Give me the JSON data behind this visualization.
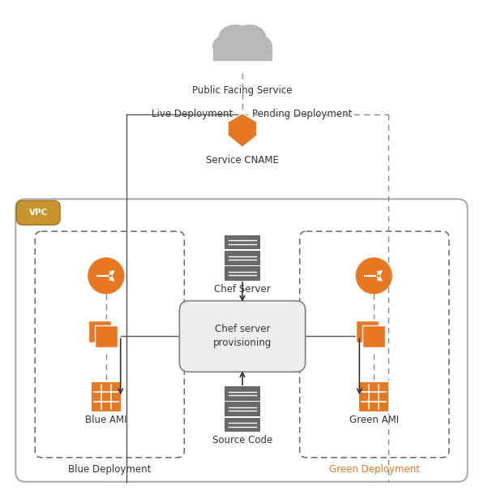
{
  "background_color": "#ffffff",
  "cloud_label": "Public Facing Service",
  "shield_label": "Service CNAME",
  "live_label": "Live Deployment",
  "pending_label": "Pending Deployment",
  "vpc_label": "VPC",
  "blue_label": "Blue Deployment",
  "green_label": "Green Deployment",
  "chef_server_label": "Chef Server",
  "provisioning_label": "Chef server\nprovisioning",
  "source_code_label": "Source Code",
  "blue_ami_label": "Blue AMI",
  "green_ami_label": "Green AMI",
  "orange": "#E87722",
  "dark_gray": "#696969",
  "gold": "#B8860B",
  "line_color": "#555555",
  "text_color": "#333333"
}
